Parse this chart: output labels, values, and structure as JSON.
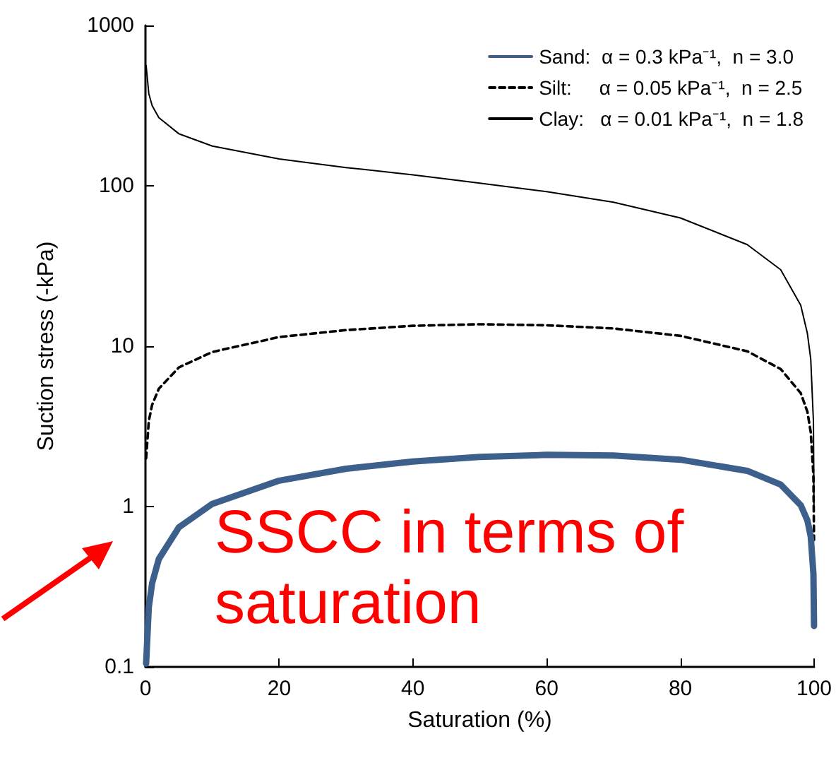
{
  "chart_data": {
    "type": "line",
    "xlabel": "Saturation (%)",
    "ylabel": "Suction stress (-kPa)",
    "x": [
      0.1,
      0.5,
      1,
      2,
      5,
      10,
      20,
      30,
      40,
      50,
      60,
      70,
      80,
      90,
      95,
      98,
      99,
      99.5,
      99.9,
      99.99
    ],
    "series": [
      {
        "name": "Sand:  α = 0.3 kPa⁻¹,  n = 3.0",
        "color": "#3d5f8c",
        "line_style": "solid",
        "values": [
          0.105,
          0.236,
          0.333,
          0.471,
          0.742,
          1.04,
          1.45,
          1.72,
          1.91,
          2.04,
          2.1,
          2.08,
          1.96,
          1.67,
          1.37,
          1.02,
          0.82,
          0.65,
          0.38,
          0.18
        ]
      },
      {
        "name": "Silt:     α = 0.05 kPa⁻¹,  n = 2.5",
        "color": "#000000",
        "line_style": "dashed",
        "values": [
          2.0,
          3.42,
          4.31,
          5.43,
          7.37,
          9.2,
          11.4,
          12.6,
          13.4,
          13.7,
          13.5,
          12.9,
          11.6,
          9.3,
          7.2,
          5.1,
          3.9,
          2.9,
          1.55,
          0.62
        ]
      },
      {
        "name": "Clay:   α = 0.01 kPa⁻¹,  n = 1.8",
        "color": "#000000",
        "line_style": "solid",
        "values": [
          562,
          376,
          316,
          266,
          211,
          177,
          147,
          130,
          117,
          104,
          92,
          79,
          63,
          43,
          30,
          18,
          12,
          8.3,
          3.4,
          0.94
        ]
      }
    ],
    "xlim": [
      0,
      100
    ],
    "xticks": [
      0,
      20,
      40,
      60,
      80,
      100
    ],
    "ylim": [
      0.1,
      1000
    ],
    "yticks": [
      0.1,
      1,
      10,
      100,
      1000
    ],
    "log": "y",
    "grid": false,
    "legend": "top right",
    "marker": "none",
    "annotations": [
      "SSCC in terms of saturation"
    ]
  }
}
